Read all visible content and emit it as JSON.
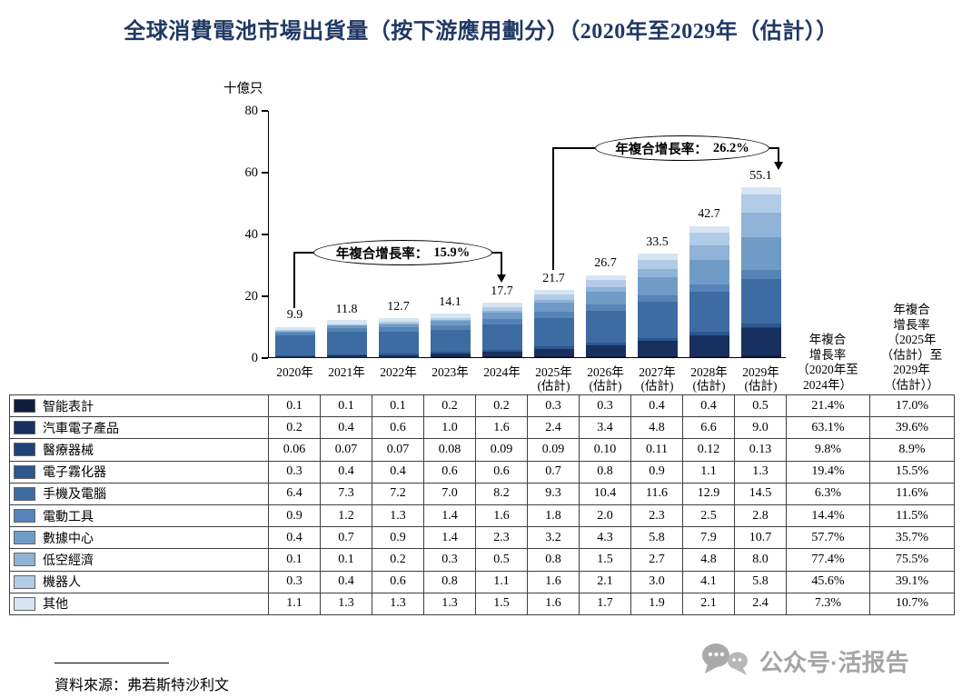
{
  "title": "全球消費電池市場出貨量（按下游應用劃分）（2020年至2029年（估計））",
  "chart_data": {
    "type": "stacked-bar",
    "title": "全球消費電池市場出貨量（按下游應用劃分）（2020年至2029年（估計））",
    "unit_label": "十億只",
    "ylim": [
      0,
      80
    ],
    "yticks": [
      0,
      20,
      40,
      60,
      80
    ],
    "grid": false,
    "legend_position": "table-left",
    "categories": [
      [
        "2020年"
      ],
      [
        "2021年"
      ],
      [
        "2022年"
      ],
      [
        "2023年"
      ],
      [
        "2024年"
      ],
      [
        "2025年",
        "(估計)"
      ],
      [
        "2026年",
        "(估計)"
      ],
      [
        "2027年",
        "(估計)"
      ],
      [
        "2028年",
        "(估計)"
      ],
      [
        "2029年",
        "(估計)"
      ]
    ],
    "totals": [
      "9.9",
      "11.8",
      "12.7",
      "14.1",
      "17.7",
      "21.7",
      "26.7",
      "33.5",
      "42.7",
      "55.1"
    ],
    "series": [
      {
        "name": "智能表計",
        "color": "#0f1e3d",
        "values": [
          "0.1",
          "0.1",
          "0.1",
          "0.2",
          "0.2",
          "0.3",
          "0.3",
          "0.4",
          "0.4",
          "0.5"
        ],
        "cagr_2020_2024": "21.4%",
        "cagr_2025e_2029e": "17.0%"
      },
      {
        "name": "汽車電子產品",
        "color": "#17305f",
        "values": [
          "0.2",
          "0.4",
          "0.6",
          "1.0",
          "1.6",
          "2.4",
          "3.4",
          "4.8",
          "6.6",
          "9.0"
        ],
        "cagr_2020_2024": "63.1%",
        "cagr_2025e_2029e": "39.6%"
      },
      {
        "name": "醫療器械",
        "color": "#1f4278",
        "values": [
          "0.06",
          "0.07",
          "0.07",
          "0.08",
          "0.09",
          "0.09",
          "0.10",
          "0.11",
          "0.12",
          "0.13"
        ],
        "cagr_2020_2024": "9.8%",
        "cagr_2025e_2029e": "8.9%"
      },
      {
        "name": "電子霧化器",
        "color": "#2c568d",
        "values": [
          "0.3",
          "0.4",
          "0.4",
          "0.6",
          "0.6",
          "0.7",
          "0.8",
          "0.9",
          "1.1",
          "1.3"
        ],
        "cagr_2020_2024": "19.4%",
        "cagr_2025e_2029e": "15.5%"
      },
      {
        "name": "手機及電腦",
        "color": "#3d6ca2",
        "values": [
          "6.4",
          "7.3",
          "7.2",
          "7.0",
          "8.2",
          "9.3",
          "10.4",
          "11.6",
          "12.9",
          "14.5"
        ],
        "cagr_2020_2024": "6.3%",
        "cagr_2025e_2029e": "11.6%"
      },
      {
        "name": "電動工具",
        "color": "#5684b6",
        "values": [
          "0.9",
          "1.2",
          "1.3",
          "1.4",
          "1.6",
          "1.8",
          "2.0",
          "2.3",
          "2.5",
          "2.8"
        ],
        "cagr_2020_2024": "14.4%",
        "cagr_2025e_2029e": "11.5%"
      },
      {
        "name": "數據中心",
        "color": "#719bc7",
        "values": [
          "0.4",
          "0.7",
          "0.9",
          "1.4",
          "2.3",
          "3.2",
          "4.3",
          "5.8",
          "7.9",
          "10.7"
        ],
        "cagr_2020_2024": "57.7%",
        "cagr_2025e_2029e": "35.7%"
      },
      {
        "name": "低空經濟",
        "color": "#90b3d7",
        "values": [
          "0.1",
          "0.1",
          "0.2",
          "0.3",
          "0.5",
          "0.8",
          "1.5",
          "2.7",
          "4.8",
          "8.0"
        ],
        "cagr_2020_2024": "77.4%",
        "cagr_2025e_2029e": "75.5%"
      },
      {
        "name": "機器人",
        "color": "#b2cbe6",
        "values": [
          "0.3",
          "0.4",
          "0.6",
          "0.8",
          "1.1",
          "1.6",
          "2.1",
          "3.0",
          "4.1",
          "5.8"
        ],
        "cagr_2020_2024": "45.6%",
        "cagr_2025e_2029e": "39.1%"
      },
      {
        "name": "其他",
        "color": "#d7e5f3",
        "values": [
          "1.1",
          "1.3",
          "1.3",
          "1.3",
          "1.5",
          "1.6",
          "1.7",
          "1.9",
          "2.1",
          "2.4"
        ],
        "cagr_2020_2024": "7.3%",
        "cagr_2025e_2029e": "10.7%"
      }
    ],
    "annotations": [
      {
        "label": "年複合增長率：",
        "value": "15.9%"
      },
      {
        "label": "年複合增長率：",
        "value": "26.2%"
      }
    ]
  },
  "cagr_headers": [
    {
      "lines": [
        "年複合",
        "增長率",
        "（2020年至",
        "2024年）"
      ]
    },
    {
      "lines": [
        "年複合",
        "增長率",
        "（2025年",
        "（估計）至",
        "2029年",
        "（估計））"
      ]
    }
  ],
  "source": {
    "text": "資料來源：弗若斯特沙利文"
  },
  "watermark": {
    "text": "公众号·活报告"
  }
}
